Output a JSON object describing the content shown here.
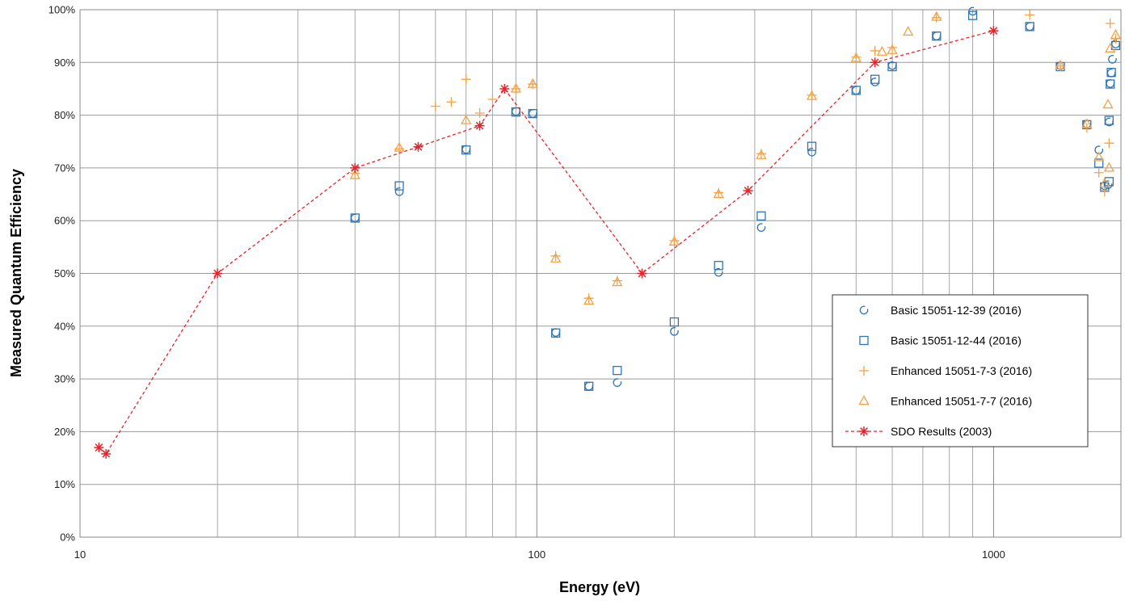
{
  "chart_data": {
    "type": "scatter",
    "title": "",
    "xlabel": "Energy (eV)",
    "ylabel": "Measured Quantum Efficiency",
    "x_scale": "log",
    "xlim": [
      10,
      1900
    ],
    "ylim": [
      0,
      100
    ],
    "x_ticks": [
      {
        "value": 10,
        "label": "10"
      },
      {
        "value": 100,
        "label": "100"
      },
      {
        "value": 1000,
        "label": "1000"
      }
    ],
    "y_ticks": [
      {
        "value": 0,
        "label": "0%"
      },
      {
        "value": 10,
        "label": "10%"
      },
      {
        "value": 20,
        "label": "20%"
      },
      {
        "value": 30,
        "label": "30%"
      },
      {
        "value": 40,
        "label": "40%"
      },
      {
        "value": 50,
        "label": "50%"
      },
      {
        "value": 60,
        "label": "60%"
      },
      {
        "value": 70,
        "label": "70%"
      },
      {
        "value": 80,
        "label": "80%"
      },
      {
        "value": 90,
        "label": "90%"
      },
      {
        "value": 100,
        "label": "100%"
      }
    ],
    "grid": true,
    "legend_position": "right",
    "series": [
      {
        "name": "Basic 15051-12-39 (2016)",
        "marker": "circle",
        "color": "#2E75B6",
        "points": [
          [
            40,
            60.5
          ],
          [
            50,
            65.5
          ],
          [
            70,
            73.5
          ],
          [
            90,
            80.7
          ],
          [
            98,
            80.3
          ],
          [
            110,
            38.8
          ],
          [
            130,
            28.6
          ],
          [
            150,
            29.3
          ],
          [
            200,
            39
          ],
          [
            250,
            50.2
          ],
          [
            310,
            58.7
          ],
          [
            400,
            73
          ],
          [
            500,
            84.7
          ],
          [
            550,
            86.3
          ],
          [
            600,
            89.4
          ],
          [
            750,
            95
          ],
          [
            900,
            99.7
          ],
          [
            1200,
            96.8
          ],
          [
            1400,
            89.4
          ],
          [
            1600,
            78.3
          ],
          [
            1700,
            73.4
          ],
          [
            1750,
            66.6
          ],
          [
            1780,
            66.8
          ],
          [
            1790,
            78.7
          ],
          [
            1800,
            86
          ],
          [
            1810,
            88
          ],
          [
            1820,
            90.6
          ],
          [
            1850,
            93.5
          ]
        ]
      },
      {
        "name": "Basic 15051-12-44 (2016)",
        "marker": "square",
        "color": "#2E75B6",
        "points": [
          [
            40,
            60.5
          ],
          [
            50,
            66.6
          ],
          [
            70,
            73.4
          ],
          [
            90,
            80.6
          ],
          [
            98,
            80.3
          ],
          [
            110,
            38.7
          ],
          [
            130,
            28.6
          ],
          [
            150,
            31.6
          ],
          [
            200,
            40.8
          ],
          [
            250,
            51.5
          ],
          [
            310,
            60.9
          ],
          [
            400,
            74.1
          ],
          [
            500,
            84.7
          ],
          [
            550,
            86.8
          ],
          [
            600,
            89.2
          ],
          [
            750,
            95
          ],
          [
            900,
            98.9
          ],
          [
            1200,
            96.8
          ],
          [
            1400,
            89.2
          ],
          [
            1600,
            78.2
          ],
          [
            1700,
            70.9
          ],
          [
            1750,
            66.4
          ],
          [
            1790,
            67.4
          ],
          [
            1790,
            79
          ],
          [
            1800,
            85.9
          ],
          [
            1810,
            88.1
          ],
          [
            1850,
            93.2
          ]
        ]
      },
      {
        "name": "Enhanced 15051-7-3 (2016)",
        "marker": "plus",
        "color": "#F4A146",
        "points": [
          [
            40,
            69
          ],
          [
            50,
            73.6
          ],
          [
            60,
            81.7
          ],
          [
            65,
            82.5
          ],
          [
            70,
            86.8
          ],
          [
            75,
            80.4
          ],
          [
            80,
            83
          ],
          [
            90,
            85
          ],
          [
            98,
            85.9
          ],
          [
            110,
            53.3
          ],
          [
            130,
            45.3
          ],
          [
            150,
            48.6
          ],
          [
            200,
            56.2
          ],
          [
            250,
            65.3
          ],
          [
            310,
            72.7
          ],
          [
            400,
            83.8
          ],
          [
            500,
            91
          ],
          [
            550,
            92.2
          ],
          [
            600,
            92.8
          ],
          [
            750,
            98.5
          ],
          [
            1200,
            99
          ],
          [
            1400,
            89.3
          ],
          [
            1600,
            77.6
          ],
          [
            1700,
            69.1
          ],
          [
            1750,
            65.5
          ],
          [
            1790,
            74.7
          ],
          [
            1800,
            97.4
          ],
          [
            1850,
            94.5
          ]
        ]
      },
      {
        "name": "Enhanced 15051-7-7 (2016)",
        "marker": "triangle",
        "color": "#F4A146",
        "points": [
          [
            40,
            68.6
          ],
          [
            50,
            73.8
          ],
          [
            70,
            79
          ],
          [
            90,
            85
          ],
          [
            98,
            85.9
          ],
          [
            110,
            52.8
          ],
          [
            130,
            44.8
          ],
          [
            150,
            48.3
          ],
          [
            200,
            56
          ],
          [
            250,
            65
          ],
          [
            310,
            72.4
          ],
          [
            400,
            83.6
          ],
          [
            500,
            90.8
          ],
          [
            570,
            92
          ],
          [
            600,
            92.3
          ],
          [
            650,
            95.8
          ],
          [
            750,
            98.6
          ],
          [
            1400,
            89.4
          ],
          [
            1600,
            78.3
          ],
          [
            1700,
            72
          ],
          [
            1750,
            67
          ],
          [
            1780,
            82
          ],
          [
            1790,
            70
          ],
          [
            1800,
            92.6
          ],
          [
            1850,
            95.2
          ]
        ]
      },
      {
        "name": "SDO Results (2003)",
        "marker": "asterisk",
        "line": "dashed",
        "color": "#E8232A",
        "points": [
          [
            11,
            17
          ],
          [
            11.4,
            15.8
          ],
          [
            20,
            50
          ],
          [
            40,
            70
          ],
          [
            55,
            74
          ],
          [
            75,
            78
          ],
          [
            85,
            85
          ],
          [
            170,
            50
          ],
          [
            290,
            65.7
          ],
          [
            550,
            90
          ],
          [
            1000,
            96
          ]
        ]
      }
    ]
  }
}
